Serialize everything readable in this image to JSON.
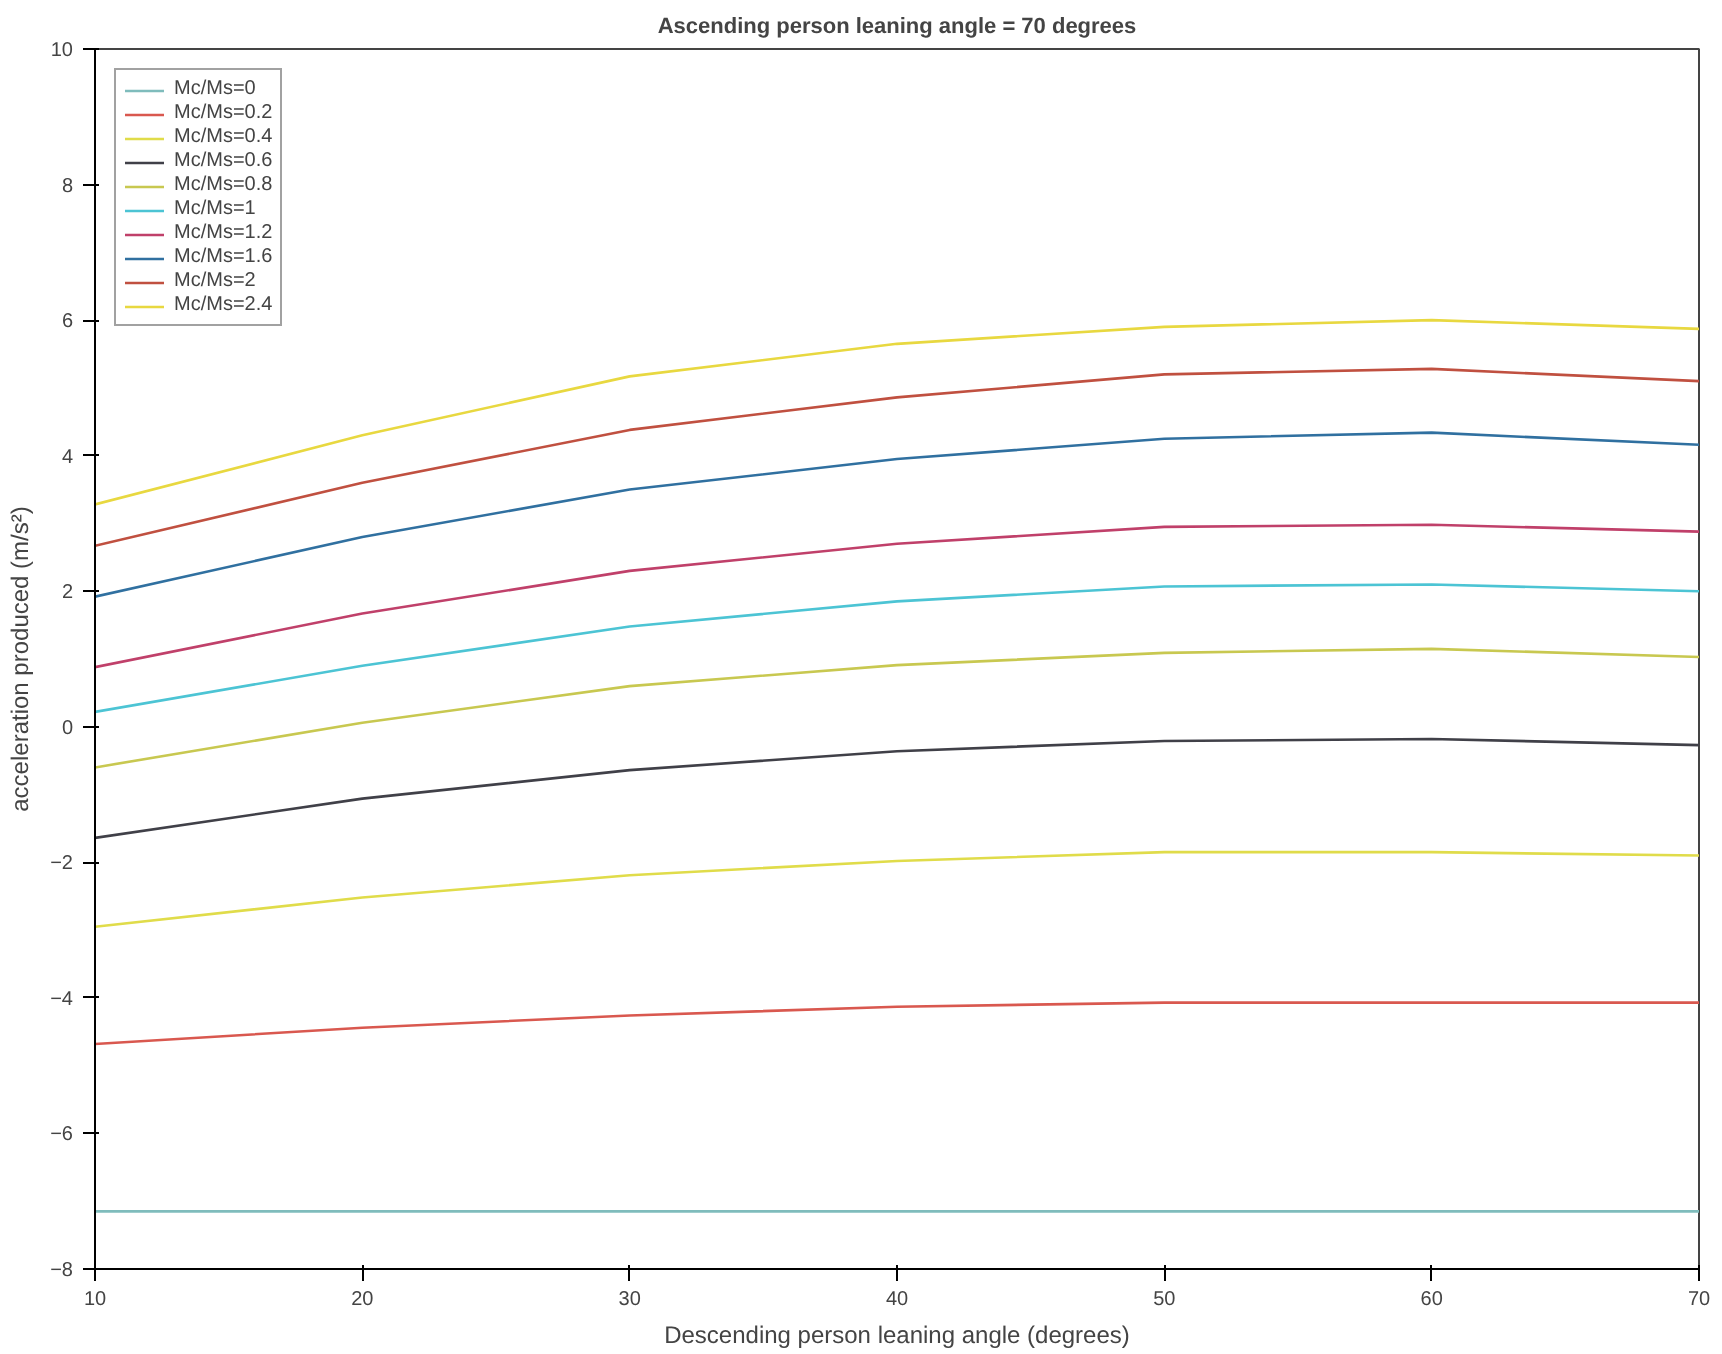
{
  "chart_data": {
    "type": "line",
    "title": "Ascending person leaning angle = 70 degrees",
    "xlabel": "Descending person leaning angle (degrees)",
    "ylabel": "acceleration produced (m/s²)",
    "x": [
      10,
      20,
      30,
      40,
      50,
      60,
      70
    ],
    "series": [
      {
        "name": "Mc/Ms=0",
        "color": "#7fbcbc",
        "values": [
          -7.15,
          -7.15,
          -7.15,
          -7.15,
          -7.15,
          -7.15,
          -7.15
        ]
      },
      {
        "name": "Mc/Ms=0.2",
        "color": "#d9584f",
        "values": [
          -4.68,
          -4.44,
          -4.26,
          -4.13,
          -4.07,
          -4.07,
          -4.07
        ]
      },
      {
        "name": "Mc/Ms=0.4",
        "color": "#e0dc4a",
        "values": [
          -2.95,
          -2.52,
          -2.19,
          -1.98,
          -1.85,
          -1.85,
          -1.9
        ]
      },
      {
        "name": "Mc/Ms=0.6",
        "color": "#404048",
        "values": [
          -1.64,
          -1.06,
          -0.64,
          -0.36,
          -0.21,
          -0.18,
          -0.27
        ]
      },
      {
        "name": "Mc/Ms=0.8",
        "color": "#c8c850",
        "values": [
          -0.6,
          0.06,
          0.6,
          0.91,
          1.09,
          1.15,
          1.03
        ]
      },
      {
        "name": "Mc/Ms=1",
        "color": "#4cc4d4",
        "values": [
          0.22,
          0.9,
          1.48,
          1.85,
          2.07,
          2.1,
          2.0
        ]
      },
      {
        "name": "Mc/Ms=1.2",
        "color": "#c0406a",
        "values": [
          0.88,
          1.67,
          2.3,
          2.7,
          2.95,
          2.98,
          2.88
        ]
      },
      {
        "name": "Mc/Ms=1.6",
        "color": "#3070a0",
        "values": [
          1.92,
          2.8,
          3.5,
          3.95,
          4.25,
          4.34,
          4.16
        ]
      },
      {
        "name": "Mc/Ms=2",
        "color": "#c05040",
        "values": [
          2.67,
          3.6,
          4.38,
          4.86,
          5.2,
          5.28,
          5.1
        ]
      },
      {
        "name": "Mc/Ms=2.4",
        "color": "#e8d840",
        "values": [
          3.28,
          4.3,
          5.17,
          5.65,
          5.9,
          6.0,
          5.87
        ]
      }
    ],
    "xlim": [
      10,
      70
    ],
    "ylim": [
      -8,
      10
    ],
    "xticks": [
      10,
      20,
      30,
      40,
      50,
      60,
      70
    ],
    "yticks": [
      -8,
      -6,
      -4,
      -2,
      0,
      2,
      4,
      6,
      8,
      10
    ],
    "legend": "top left",
    "grid": false
  }
}
